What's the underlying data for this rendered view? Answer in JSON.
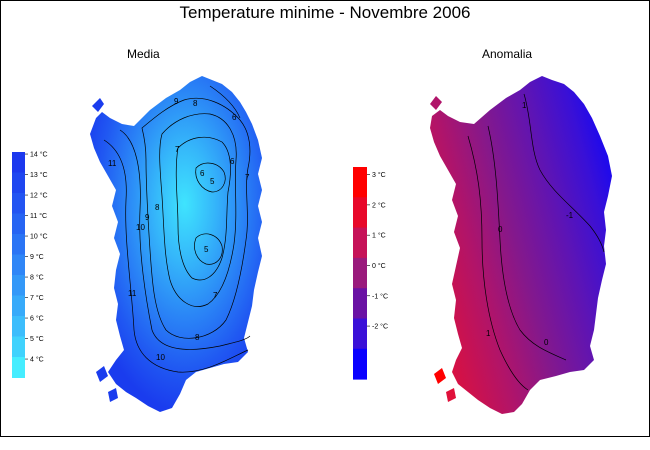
{
  "title": "Temperature minime - Novembre 2006",
  "panels": {
    "left_title": "Media",
    "right_title": "Anomalia"
  },
  "legend_media": {
    "labels": [
      "14 °C",
      "13 °C",
      "12 °C",
      "11 °C",
      "10 °C",
      "9 °C",
      "8 °C",
      "7 °C",
      "6 °C",
      "5 °C",
      "4 °C"
    ],
    "colors": [
      "#1b38ee",
      "#1e46f0",
      "#2254f2",
      "#2664f3",
      "#2a74f5",
      "#2f86f7",
      "#3398f8",
      "#37aafa",
      "#3cbdfc",
      "#40d2fd",
      "#45edff"
    ]
  },
  "legend_anomalia": {
    "labels": [
      "3 °C",
      "2 °C",
      "1 °C",
      "0 °C",
      "-1 °C",
      "-2 °C"
    ],
    "colors": [
      "#ff0000",
      "#e8082a",
      "#c61258",
      "#9a1a7c",
      "#6a12a4",
      "#3a10d8",
      "#0a00ff"
    ]
  },
  "contour_labels_media": [
    "9",
    "8",
    "7",
    "6",
    "5",
    "6",
    "7",
    "6",
    "5",
    "11",
    "10",
    "9",
    "8",
    "11",
    "10",
    "8",
    "7"
  ],
  "contour_labels_anomalia": [
    "1",
    "0",
    "-1",
    "0",
    "1"
  ],
  "colors": {
    "media_fill": "#1e6ef4",
    "media_core": "#3fd8fd",
    "anomalia_west": "#c8124a",
    "anomalia_mid": "#7c1890",
    "anomalia_east": "#4a10c8"
  }
}
